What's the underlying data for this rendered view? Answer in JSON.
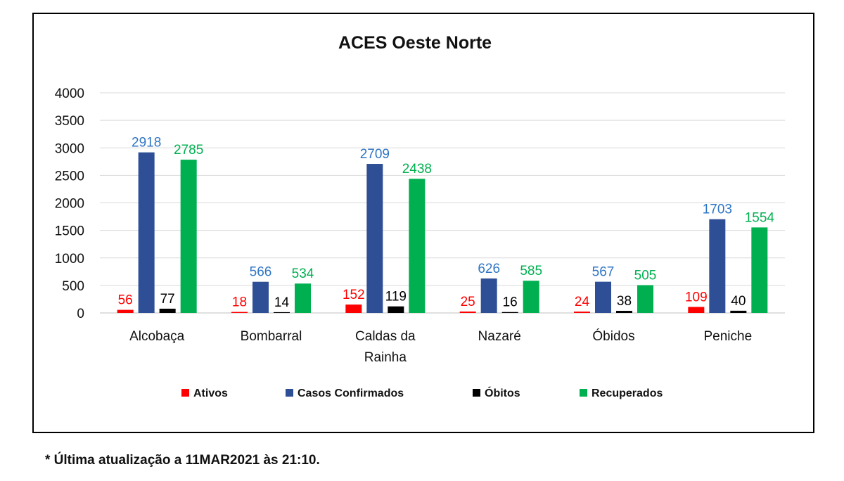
{
  "footnote": "* Última atualização a 11MAR2021 às 21:10.",
  "chart_data": {
    "type": "bar",
    "title": "ACES Oeste Norte",
    "xlabel": "",
    "ylabel": "",
    "ylim": [
      0,
      4000
    ],
    "yticks": [
      0,
      500,
      1000,
      1500,
      2000,
      2500,
      3000,
      3500,
      4000
    ],
    "grid": true,
    "legend_position": "bottom",
    "categories": [
      [
        "Alcobaça"
      ],
      [
        "Bombarral"
      ],
      [
        "Caldas da",
        "Rainha"
      ],
      [
        "Nazaré"
      ],
      [
        "Óbidos"
      ],
      [
        "Peniche"
      ]
    ],
    "series": [
      {
        "name": "Ativos",
        "color": "#ff0000",
        "label_color": "#ff0000",
        "values": [
          56,
          18,
          152,
          25,
          24,
          109
        ]
      },
      {
        "name": "Casos Confirmados",
        "color": "#2e4f96",
        "label_color": "#2f75c5",
        "values": [
          2918,
          566,
          2709,
          626,
          567,
          1703
        ]
      },
      {
        "name": "Óbitos",
        "color": "#000000",
        "label_color": "#000000",
        "values": [
          77,
          14,
          119,
          16,
          38,
          40
        ]
      },
      {
        "name": "Recuperados",
        "color": "#00b050",
        "label_color": "#00b050",
        "values": [
          2785,
          534,
          2438,
          585,
          505,
          1554
        ]
      }
    ]
  }
}
